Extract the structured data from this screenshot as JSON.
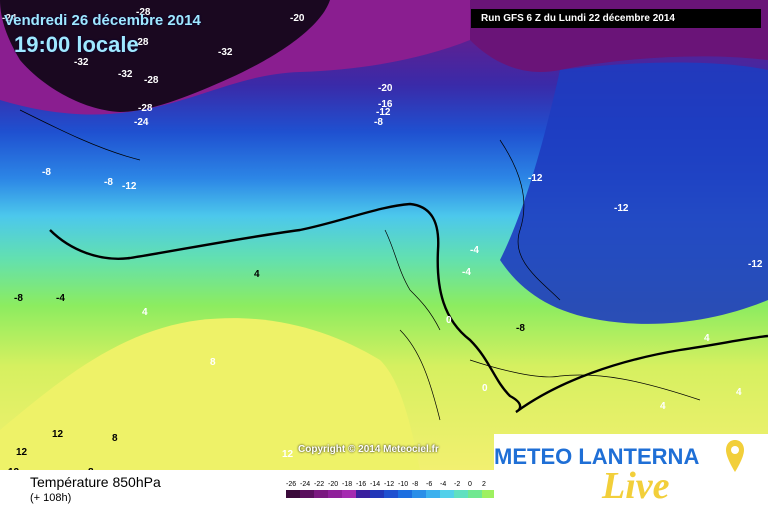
{
  "header": {
    "date": "Vendredi 26 décembre 2014",
    "time": "19:00 locale",
    "run": "Run GFS 6 Z du Lundi 22 décembre 2014"
  },
  "copyright": "Copyright © 2014 Meteociel.fr",
  "footer": {
    "title": "Température 850hPa",
    "subtitle": "(+ 108h)"
  },
  "scale": {
    "ticks": [
      "-26",
      "-24",
      "-22",
      "-20",
      "-18",
      "-16",
      "-14",
      "-12",
      "-10",
      "-8",
      "-6",
      "-4",
      "-2",
      "0",
      "2"
    ],
    "colors": [
      "#3a0a3a",
      "#5a0f5e",
      "#7a1880",
      "#8f209a",
      "#a52ab0",
      "#3b1f9e",
      "#2236b8",
      "#1f50d0",
      "#1c6ee0",
      "#2a8ee8",
      "#3cb0ee",
      "#52d0ea",
      "#60e0c0",
      "#70e890",
      "#9ef060"
    ]
  },
  "logo": {
    "brand": "METEO LANTERNA",
    "tagline": "Live"
  },
  "isotherm_labels": [
    {
      "text": "-24",
      "light": true
    },
    {
      "text": "-28",
      "light": true
    },
    {
      "text": "-20",
      "light": true
    },
    {
      "text": "-28",
      "light": true
    },
    {
      "text": "-32",
      "light": true
    },
    {
      "text": "-32",
      "light": true
    },
    {
      "text": "-32",
      "light": true
    },
    {
      "text": "-28",
      "light": true
    },
    {
      "text": "-28",
      "light": true
    },
    {
      "text": "-24",
      "light": true
    },
    {
      "text": "-20",
      "light": true
    },
    {
      "text": "-16",
      "light": true
    },
    {
      "text": "-12",
      "light": true
    },
    {
      "text": "-8",
      "light": true
    },
    {
      "text": "-8",
      "light": true
    },
    {
      "text": "-8",
      "light": true
    },
    {
      "text": "-12",
      "light": true
    },
    {
      "text": "-12",
      "light": true
    },
    {
      "text": "-12",
      "light": true
    },
    {
      "text": "-12",
      "light": true
    },
    {
      "text": "-4",
      "light": true
    },
    {
      "text": "-4",
      "light": true
    },
    {
      "text": "-8",
      "light": false
    },
    {
      "text": "-8",
      "light": false
    },
    {
      "text": "-4",
      "light": false
    },
    {
      "text": "4",
      "light": false
    },
    {
      "text": "4",
      "light": true
    },
    {
      "text": "0",
      "light": true
    },
    {
      "text": "8",
      "light": true
    },
    {
      "text": "0",
      "light": true
    },
    {
      "text": "12",
      "light": false
    },
    {
      "text": "8",
      "light": false
    },
    {
      "text": "12",
      "light": false
    },
    {
      "text": "12",
      "light": false
    },
    {
      "text": "8",
      "light": false
    },
    {
      "text": "12",
      "light": true
    },
    {
      "text": "4",
      "light": true
    },
    {
      "text": "4",
      "light": true
    },
    {
      "text": "4",
      "light": true
    }
  ]
}
